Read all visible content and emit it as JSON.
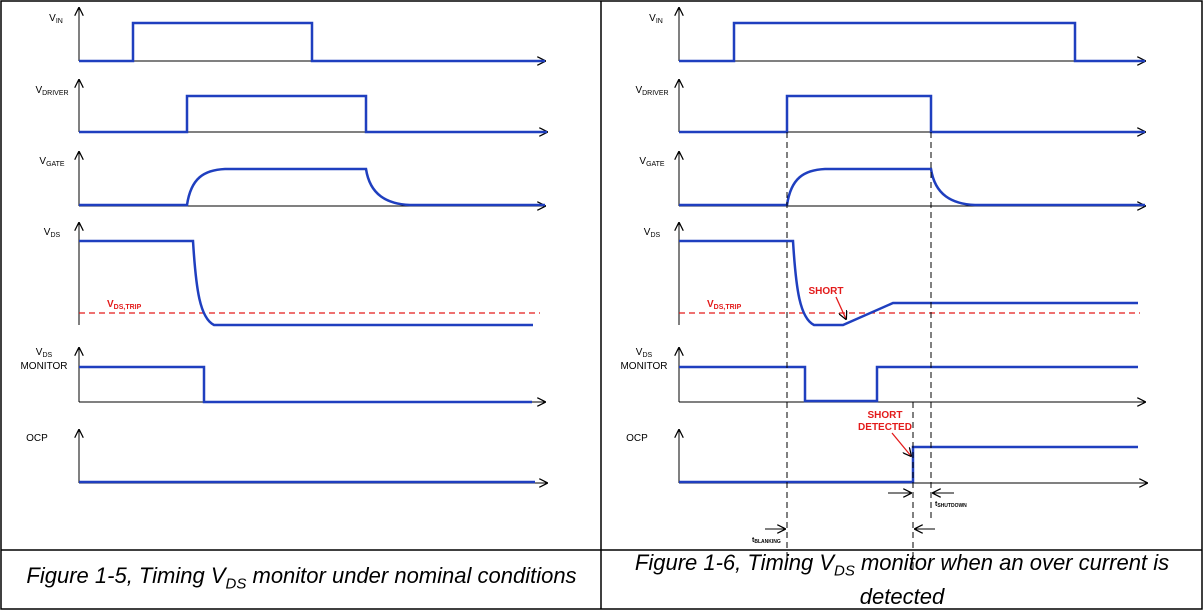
{
  "signals": {
    "vin": {
      "main": "V",
      "sub": "IN"
    },
    "vdriver": {
      "main": "V",
      "sub": "DRIVER"
    },
    "vgate": {
      "main": "V",
      "sub": "GATE"
    },
    "vds": {
      "main": "V",
      "sub": "DS"
    },
    "vds_monitor": {
      "main": "V",
      "sub": "DS",
      "line2": "MONITOR"
    },
    "ocp": {
      "main": "OCP"
    }
  },
  "annotations": {
    "trip_left": {
      "main": "V",
      "sub": "DS,TRIP"
    },
    "trip_right": {
      "main": "V",
      "sub": "DS,TRIP"
    },
    "short": "SHORT",
    "short_detected_1": "SHORT",
    "short_detected_2": "DETECTED",
    "t_blanking": {
      "main": "t",
      "sub": "BLANKING"
    },
    "t_shutdown": {
      "main": "t",
      "sub": "SHUTDOWN"
    }
  },
  "captions": {
    "left": {
      "prefix": "Figure 1-5, Timing V",
      "sub": "DS",
      "suffix": " monitor under nominal conditions"
    },
    "right": {
      "prefix": "Figure 1-6, Timing V",
      "sub": "DS",
      "suffix": " monitor when an over current is detected"
    }
  },
  "colors": {
    "waveform": "#1f3fbf",
    "annotation": "#e31b1b",
    "axis": "#000000",
    "border": "#000000"
  }
}
